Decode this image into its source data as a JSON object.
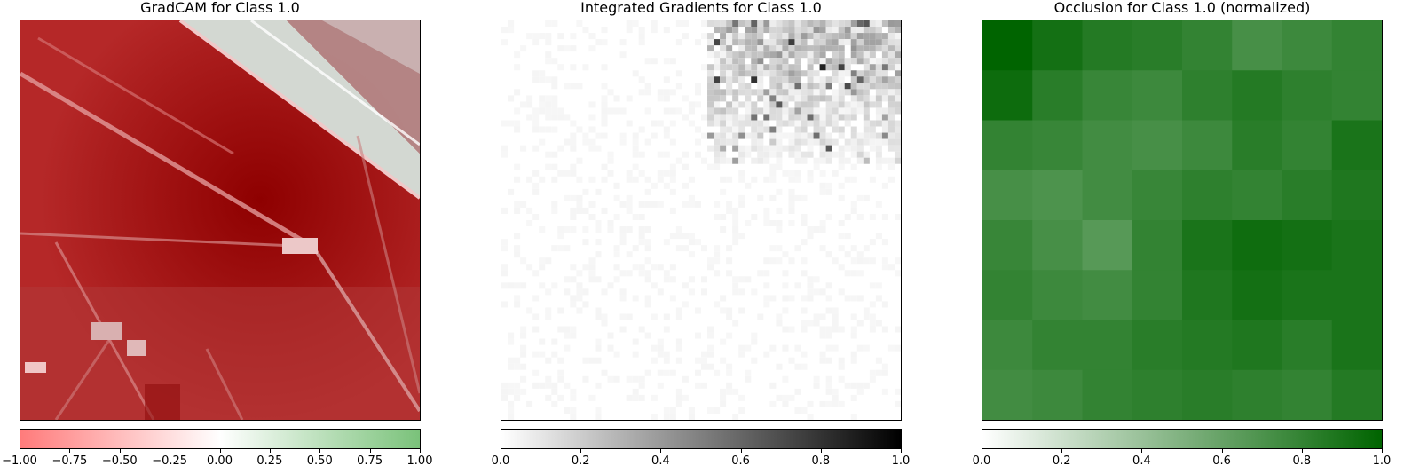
{
  "chart_data": [
    {
      "type": "heatmap",
      "title": "GradCAM for Class 1.0",
      "colormap": [
        "#ff7b7b",
        "#ffffff",
        "#7ac27a"
      ],
      "colorbar_range": [
        -1.0,
        1.0
      ],
      "colorbar_ticks": [
        "−1.00",
        "−0.75",
        "−0.50",
        "−0.25",
        "0.00",
        "0.25",
        "0.50",
        "0.75",
        "1.00"
      ],
      "overlay": "GradCAM heatmap blended over aerial image with diagonal linear features",
      "dominant_color": "#a01818"
    },
    {
      "type": "heatmap",
      "title": "Integrated Gradients for Class 1.0",
      "colormap": [
        "#ffffff",
        "#000000"
      ],
      "colorbar_range": [
        0.0,
        1.0
      ],
      "colorbar_ticks": [
        "0.0",
        "0.2",
        "0.4",
        "0.6",
        "0.8",
        "1.0"
      ],
      "hotspot_region": "top-right"
    },
    {
      "type": "heatmap",
      "title": "Occlusion for Class 1.0 (normalized)",
      "colormap": [
        "#ffffff",
        "#006400"
      ],
      "colorbar_range": [
        0.0,
        1.0
      ],
      "colorbar_ticks": [
        "0.0",
        "0.2",
        "0.4",
        "0.6",
        "0.8",
        "1.0"
      ],
      "grid_rows": 8,
      "grid_cols": 8,
      "values": [
        [
          1.0,
          0.92,
          0.86,
          0.84,
          0.8,
          0.72,
          0.76,
          0.8
        ],
        [
          0.95,
          0.84,
          0.78,
          0.76,
          0.82,
          0.86,
          0.82,
          0.8
        ],
        [
          0.8,
          0.78,
          0.74,
          0.72,
          0.76,
          0.84,
          0.8,
          0.9
        ],
        [
          0.72,
          0.7,
          0.74,
          0.78,
          0.82,
          0.8,
          0.84,
          0.88
        ],
        [
          0.78,
          0.72,
          0.66,
          0.8,
          0.9,
          0.94,
          0.92,
          0.9
        ],
        [
          0.8,
          0.76,
          0.74,
          0.8,
          0.88,
          0.92,
          0.9,
          0.9
        ],
        [
          0.76,
          0.8,
          0.8,
          0.84,
          0.86,
          0.88,
          0.84,
          0.9
        ],
        [
          0.74,
          0.76,
          0.8,
          0.82,
          0.84,
          0.82,
          0.8,
          0.86
        ]
      ]
    }
  ]
}
